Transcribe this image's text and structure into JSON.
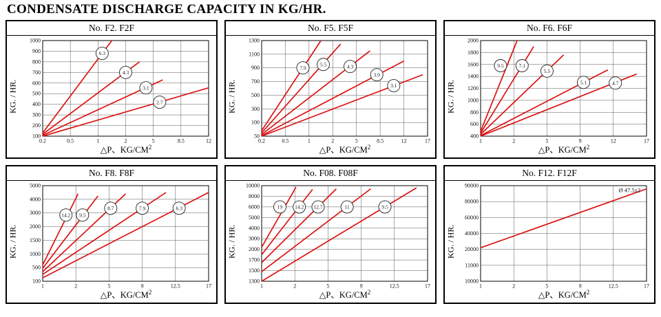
{
  "page_title": "CONDENSATE DISCHARGE CAPACITY IN KG/HR.",
  "style": {
    "line_color": "#dd1111",
    "grid_color": "#555555",
    "border_color": "#000000"
  },
  "chart_data": [
    {
      "type": "line",
      "title": "No. F2. F2F",
      "ylabel": "KG. / HR.",
      "xlabel": "△P、KG/CM",
      "xlabel_sup": "2",
      "x_ticks": [
        "0.2",
        "0.5",
        "1",
        "2",
        "5",
        "8.5",
        "12"
      ],
      "y_ticks": [
        "100",
        "200",
        "300",
        "400",
        "500",
        "600",
        "700",
        "800",
        "900",
        "1000"
      ],
      "grid": true,
      "legend": "circled orifice size on each line",
      "series": [
        {
          "name": "6.3",
          "points": [
            [
              0.2,
              130
            ],
            [
              1.5,
              1000
            ]
          ],
          "label_at": [
            1.15,
            880
          ]
        },
        {
          "name": "4.3",
          "points": [
            [
              0.2,
              118
            ],
            [
              3.5,
              800
            ]
          ],
          "label_at": [
            2.0,
            700
          ]
        },
        {
          "name": "3.1",
          "points": [
            [
              0.2,
              108
            ],
            [
              6.2,
              630
            ]
          ],
          "label_at": [
            4.2,
            555
          ]
        },
        {
          "name": "2.7",
          "points": [
            [
              0.2,
              100
            ],
            [
              12,
              555
            ]
          ],
          "label_at": [
            5.8,
            420
          ]
        }
      ]
    },
    {
      "type": "line",
      "title": "No. F5. F5F",
      "ylabel": "KG. / HR.",
      "xlabel": "△P、KG/CM",
      "xlabel_sup": "2",
      "x_ticks": [
        "0.2",
        "0.5",
        "1",
        "2",
        "5",
        "8.5",
        "12",
        "17"
      ],
      "y_ticks": [
        "50",
        "100",
        "300",
        "500",
        "700",
        "900",
        "1100",
        "1300"
      ],
      "grid": true,
      "legend": "circled orifice size on each line",
      "series": [
        {
          "name": "7.9",
          "points": [
            [
              0.2,
              70
            ],
            [
              1.5,
              1300
            ]
          ],
          "label_at": [
            0.87,
            900
          ]
        },
        {
          "name": "5.5",
          "points": [
            [
              0.2,
              62
            ],
            [
              3.0,
              1250
            ]
          ],
          "label_at": [
            1.6,
            950
          ]
        },
        {
          "name": "4.3",
          "points": [
            [
              0.2,
              56
            ],
            [
              7.0,
              1150
            ]
          ],
          "label_at": [
            4.2,
            920
          ]
        },
        {
          "name": "3.9",
          "points": [
            [
              0.2,
              52
            ],
            [
              12.0,
              1000
            ]
          ],
          "label_at": [
            8.0,
            800
          ]
        },
        {
          "name": "3.1",
          "points": [
            [
              0.2,
              50
            ],
            [
              16.0,
              800
            ]
          ],
          "label_at": [
            10.5,
            640
          ]
        }
      ]
    },
    {
      "type": "line",
      "title": "No. F6. F6F",
      "ylabel": "KG. / HR.",
      "xlabel": "△P、KG/CM",
      "xlabel_sup": "2",
      "x_ticks": [
        "1",
        "2",
        "5",
        "9",
        "12",
        "17"
      ],
      "y_ticks": [
        "400",
        "600",
        "800",
        "1000",
        "1200",
        "1400",
        "1600",
        "1800",
        "2000"
      ],
      "grid": true,
      "legend": "circled orifice size on each line",
      "series": [
        {
          "name": "9.5",
          "points": [
            [
              1,
              480
            ],
            [
              2.3,
              2000
            ]
          ],
          "label_at": [
            1.6,
            1580
          ]
        },
        {
          "name": "7.1",
          "points": [
            [
              1,
              450
            ],
            [
              3.8,
              1900
            ]
          ],
          "label_at": [
            2.75,
            1580
          ]
        },
        {
          "name": "5.5",
          "points": [
            [
              1,
              430
            ],
            [
              7.0,
              1760
            ]
          ],
          "label_at": [
            5.0,
            1490
          ]
        },
        {
          "name": "5.1",
          "points": [
            [
              1,
              410
            ],
            [
              11.5,
              1510
            ]
          ],
          "label_at": [
            9.3,
            1300
          ]
        },
        {
          "name": "4.7",
          "points": [
            [
              1,
              400
            ],
            [
              15.5,
              1440
            ]
          ],
          "label_at": [
            12.3,
            1290
          ]
        }
      ]
    },
    {
      "type": "line",
      "title": "No. F8. F8F",
      "ylabel": "KG. / HR.",
      "xlabel": "△P、KG/CM",
      "xlabel_sup": "2",
      "x_ticks": [
        "1",
        "2",
        "5",
        "9",
        "12.5",
        "17"
      ],
      "y_ticks": [
        "100",
        "500",
        "1000",
        "1500",
        "2000",
        "3000",
        "4000",
        "5000"
      ],
      "grid": true,
      "legend": "circled orifice size on each line",
      "series": [
        {
          "name": "14.2",
          "points": [
            [
              1,
              600
            ],
            [
              2.2,
              4400
            ]
          ],
          "label_at": [
            1.7,
            2850
          ]
        },
        {
          "name": "9.5",
          "points": [
            [
              1,
              480
            ],
            [
              4.0,
              4250
            ]
          ],
          "label_at": [
            2.6,
            2850
          ]
        },
        {
          "name": "8.7",
          "points": [
            [
              1,
              380
            ],
            [
              7.0,
              4400
            ]
          ],
          "label_at": [
            5.2,
            3350
          ]
        },
        {
          "name": "7.9",
          "points": [
            [
              1,
              300
            ],
            [
              11.5,
              4500
            ]
          ],
          "label_at": [
            9.0,
            3350
          ]
        },
        {
          "name": "6.3",
          "points": [
            [
              1,
              200
            ],
            [
              17.0,
              4500
            ]
          ],
          "label_at": [
            13.0,
            3350
          ]
        }
      ]
    },
    {
      "type": "line",
      "title": "No. F08. F08F",
      "ylabel": "KG. / HR.",
      "xlabel": "△P、KG/CM",
      "xlabel_sup": "2",
      "x_ticks": [
        "1",
        "2",
        "5",
        "9",
        "12.5",
        "17"
      ],
      "y_ticks": [
        "1300",
        "1500",
        "1700",
        "2000",
        "3000",
        "4000",
        "5000",
        "6000",
        "8000",
        "10000"
      ],
      "grid": true,
      "legend": "circled orifice size on each line",
      "series": [
        {
          "name": "19",
          "points": [
            [
              1,
              2200
            ],
            [
              2.1,
              9700
            ]
          ],
          "label_at": [
            1.55,
            6000
          ]
        },
        {
          "name": "14.2",
          "points": [
            [
              1,
              1850
            ],
            [
              3.6,
              9300
            ]
          ],
          "label_at": [
            2.4,
            6000
          ]
        },
        {
          "name": "12.7",
          "points": [
            [
              1,
              1650
            ],
            [
              6.0,
              9400
            ]
          ],
          "label_at": [
            4.1,
            6000
          ]
        },
        {
          "name": "11",
          "points": [
            [
              1,
              1480
            ],
            [
              10.0,
              9400
            ]
          ],
          "label_at": [
            7.3,
            6000
          ]
        },
        {
          "name": "9.5",
          "points": [
            [
              1,
              1300
            ],
            [
              15.5,
              9600
            ]
          ],
          "label_at": [
            11.5,
            6000
          ]
        }
      ]
    },
    {
      "type": "line",
      "title": "No. F12. F12F",
      "ylabel": "KG. / HR.",
      "xlabel": "△P、KG/CM",
      "xlabel_sup": "2",
      "x_ticks": [
        "1",
        "2",
        "5",
        "9",
        "12.5",
        "17"
      ],
      "y_ticks": [
        "10000",
        "11000",
        "20000",
        "40000",
        "60000",
        "80000",
        "90000"
      ],
      "grid": true,
      "legend": "pipe size text at line end",
      "series": [
        {
          "name": "Ø 47.5x2",
          "points": [
            [
              1,
              22000
            ],
            [
              17,
              88000
            ]
          ],
          "label_at": [
            14.7,
            86000
          ],
          "label_style": "text"
        }
      ]
    }
  ]
}
